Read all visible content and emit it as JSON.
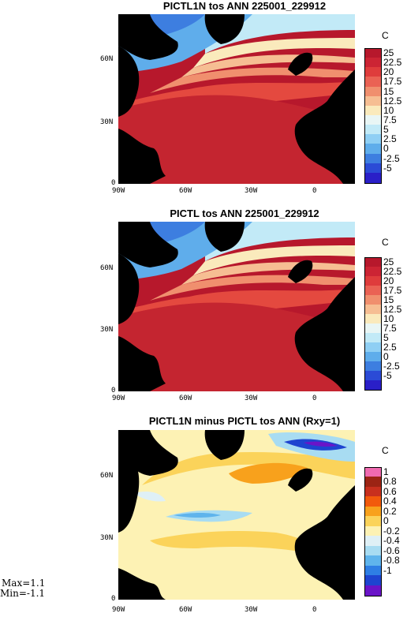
{
  "panels": [
    {
      "title": "PICTL1N tos ANN 225001_229912",
      "unit": "C",
      "lat_ticks": [
        "60N",
        "30N",
        "0"
      ],
      "colorbar": {
        "labels": [
          "25",
          "22.5",
          "20",
          "17.5",
          "15",
          "12.5",
          "10",
          "7.5",
          "5",
          "2.5",
          "0",
          "-2.5",
          "-5"
        ],
        "colors": [
          "#b7182c",
          "#cc2434",
          "#df3c3c",
          "#ea6254",
          "#f08f6e",
          "#f6be93",
          "#faeabc",
          "#e9f6f5",
          "#c2eaf7",
          "#8fcff4",
          "#5fadeb",
          "#3d7ee0",
          "#2b4bd6",
          "#2a1fc8"
        ]
      }
    },
    {
      "title": "PICTL tos ANN 225001_229912",
      "unit": "C",
      "lat_ticks": [
        "60N",
        "30N",
        "0"
      ],
      "colorbar": {
        "labels": [
          "25",
          "22.5",
          "20",
          "17.5",
          "15",
          "12.5",
          "10",
          "7.5",
          "5",
          "2.5",
          "0",
          "-2.5",
          "-5"
        ],
        "colors": [
          "#b7182c",
          "#cc2434",
          "#df3c3c",
          "#ea6254",
          "#f08f6e",
          "#f6be93",
          "#faeabc",
          "#e9f6f5",
          "#c2eaf7",
          "#8fcff4",
          "#5fadeb",
          "#3d7ee0",
          "#2b4bd6",
          "#2a1fc8"
        ]
      }
    },
    {
      "title": "PICTL1N minus PICTL tos ANN (Rxy=1)",
      "unit": "C",
      "lat_ticks": [
        "60N",
        "30N",
        "0"
      ],
      "lon_ticks": [
        "90W",
        "60W",
        "30W",
        "0"
      ],
      "colorbar": {
        "labels": [
          "1",
          "0.8",
          "0.6",
          "0.4",
          "0.2",
          "0",
          "-0.2",
          "-0.4",
          "-0.6",
          "-0.8",
          "-1"
        ],
        "colors": [
          "#f06ab0",
          "#9c2414",
          "#c8301e",
          "#f25a0c",
          "#f8a11c",
          "#fbd35a",
          "#fdf2b4",
          "#dff0f6",
          "#a8dcf2",
          "#5fb4ec",
          "#2e7ee4",
          "#1e44d0",
          "#6a14c8"
        ]
      },
      "stats": {
        "max": "Max=1.1",
        "min": "Min=-1.1"
      }
    }
  ],
  "lon_ticks_top": [
    "90W",
    "60W",
    "30W",
    "0"
  ],
  "lon_ticks_mid": [
    "90W",
    "60W",
    "30W",
    "0"
  ]
}
